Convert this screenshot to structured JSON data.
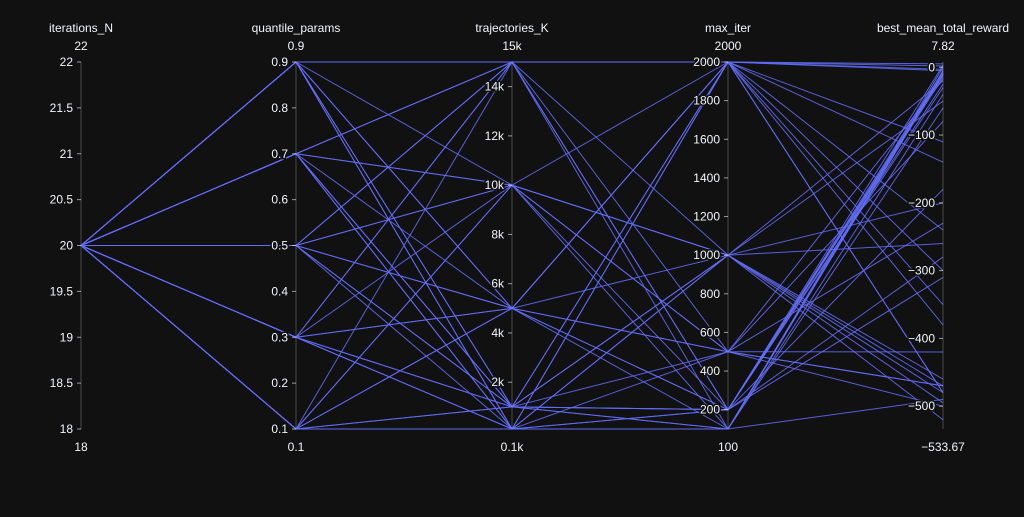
{
  "chart_data": {
    "type": "parallel_coordinates",
    "line_color": "#636efa",
    "background_color": "#111111",
    "text_color": "#f2f5fa",
    "dimensions": [
      {
        "name": "iterations_N",
        "range_labels": [
          "18",
          "22"
        ],
        "range": [
          18,
          22
        ],
        "ticks": [
          18,
          18.5,
          19,
          19.5,
          20,
          20.5,
          21,
          21.5,
          22
        ],
        "tick_labels": [
          "18",
          "18.5",
          "19",
          "19.5",
          "20",
          "20.5",
          "21",
          "21.5",
          "22"
        ],
        "tick_side": "left"
      },
      {
        "name": "quantile_params",
        "range_labels": [
          "0.1",
          "0.9"
        ],
        "range": [
          0.1,
          0.9
        ],
        "ticks": [
          0.1,
          0.2,
          0.3,
          0.4,
          0.5,
          0.6,
          0.7,
          0.8,
          0.9
        ],
        "tick_labels": [
          "0.1",
          "0.2",
          "0.3",
          "0.4",
          "0.5",
          "0.6",
          "0.7",
          "0.8",
          "0.9"
        ],
        "tick_side": "left"
      },
      {
        "name": "trajectories_K",
        "range_labels": [
          "0.1k",
          "15k"
        ],
        "range": [
          100,
          15000
        ],
        "ticks": [
          2000,
          4000,
          6000,
          8000,
          10000,
          12000,
          14000
        ],
        "tick_labels": [
          "2k",
          "4k",
          "6k",
          "8k",
          "10k",
          "12k",
          "14k"
        ],
        "tick_side": "left"
      },
      {
        "name": "max_iter",
        "range_labels": [
          "100",
          "2000"
        ],
        "range": [
          100,
          2000
        ],
        "ticks": [
          200,
          400,
          600,
          800,
          1000,
          1200,
          1400,
          1600,
          1800,
          2000
        ],
        "tick_labels": [
          "200",
          "400",
          "600",
          "800",
          "1000",
          "1200",
          "1400",
          "1600",
          "1800",
          "2000"
        ],
        "tick_side": "left"
      },
      {
        "name": "best_mean_total_reward",
        "range_labels": [
          "−533.67",
          "7.82"
        ],
        "range": [
          -533.67,
          7.82
        ],
        "ticks": [
          -500,
          -400,
          -300,
          -200,
          -100,
          0
        ],
        "tick_labels": [
          "−500",
          "−400",
          "−300",
          "−200",
          "−100",
          "0"
        ],
        "tick_side": "left"
      }
    ],
    "records": [
      [
        20,
        0.9,
        15000,
        2000,
        5
      ],
      [
        20,
        0.9,
        15000,
        2000,
        2
      ],
      [
        20,
        0.9,
        10000,
        1000,
        -50
      ],
      [
        20,
        0.9,
        5000,
        500,
        -420
      ],
      [
        20,
        0.9,
        1000,
        200,
        -30
      ],
      [
        20,
        0.9,
        100,
        100,
        0
      ],
      [
        20,
        0.9,
        5000,
        2000,
        -480
      ],
      [
        20,
        0.9,
        100,
        200,
        -10
      ],
      [
        20,
        0.7,
        15000,
        1000,
        -20
      ],
      [
        20,
        0.7,
        10000,
        2000,
        -480
      ],
      [
        20,
        0.7,
        5000,
        100,
        -5
      ],
      [
        20,
        0.7,
        1000,
        500,
        -230
      ],
      [
        20,
        0.7,
        100,
        2000,
        -300
      ],
      [
        20,
        0.7,
        15000,
        200,
        -15
      ],
      [
        20,
        0.7,
        10000,
        500,
        -500
      ],
      [
        20,
        0.7,
        100,
        1000,
        -480
      ],
      [
        20,
        0.5,
        15000,
        500,
        -470
      ],
      [
        20,
        0.5,
        10000,
        100,
        -10
      ],
      [
        20,
        0.5,
        5000,
        2000,
        -5
      ],
      [
        20,
        0.5,
        1000,
        1000,
        -260
      ],
      [
        20,
        0.5,
        100,
        200,
        -25
      ],
      [
        20,
        0.5,
        5000,
        1000,
        -520
      ],
      [
        20,
        0.5,
        1000,
        2000,
        -140
      ],
      [
        20,
        0.5,
        10000,
        200,
        -310
      ],
      [
        20,
        0.3,
        15000,
        200,
        -12
      ],
      [
        20,
        0.3,
        10000,
        1000,
        -460
      ],
      [
        20,
        0.3,
        5000,
        500,
        -80
      ],
      [
        20,
        0.3,
        1000,
        2000,
        -350
      ],
      [
        20,
        0.3,
        100,
        100,
        -40
      ],
      [
        20,
        0.3,
        15000,
        100,
        -490
      ],
      [
        20,
        0.3,
        5000,
        200,
        -180
      ],
      [
        20,
        0.3,
        100,
        500,
        -470
      ],
      [
        20,
        0.1,
        15000,
        2000,
        -3
      ],
      [
        20,
        0.1,
        10000,
        500,
        -18
      ],
      [
        20,
        0.1,
        5000,
        200,
        -280
      ],
      [
        20,
        0.1,
        1000,
        100,
        -8
      ],
      [
        20,
        0.1,
        100,
        1000,
        -495
      ],
      [
        20,
        0.1,
        1000,
        200,
        -6
      ],
      [
        20,
        0.1,
        100,
        2000,
        -110
      ],
      [
        20,
        0.1,
        10000,
        1000,
        -470
      ],
      [
        20,
        0.9,
        1000,
        1000,
        -200
      ],
      [
        20,
        0.7,
        1000,
        100,
        -60
      ],
      [
        20,
        0.5,
        15000,
        2000,
        -380
      ],
      [
        20,
        0.3,
        1000,
        200,
        3
      ],
      [
        20,
        0.1,
        5000,
        2000,
        -240
      ]
    ]
  }
}
